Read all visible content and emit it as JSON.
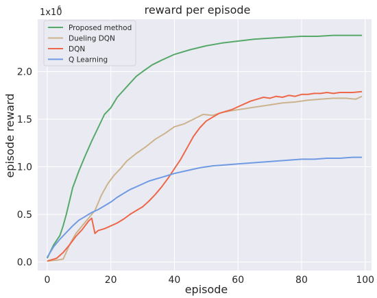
{
  "chart_data": {
    "type": "line",
    "title": "reward per episode",
    "xlabel": "episode",
    "ylabel": "episode reward",
    "y_scale_label": "1x10",
    "y_scale_exp": "6",
    "xlim": [
      -3,
      102
    ],
    "ylim": [
      -0.09,
      2.55
    ],
    "x_ticks": [
      "0",
      "20",
      "40",
      "60",
      "80",
      "100"
    ],
    "y_ticks": [
      "0.0",
      "0.5",
      "1.0",
      "1.5",
      "2.0"
    ],
    "grid": true,
    "background": "#eaeaf2",
    "legend_position": "top-left",
    "series": [
      {
        "name": "Proposed method",
        "color": "#55a868",
        "points": [
          [
            0,
            0.04
          ],
          [
            2,
            0.18
          ],
          [
            4,
            0.28
          ],
          [
            5,
            0.38
          ],
          [
            6,
            0.5
          ],
          [
            7,
            0.64
          ],
          [
            8,
            0.78
          ],
          [
            10,
            0.96
          ],
          [
            12,
            1.12
          ],
          [
            14,
            1.27
          ],
          [
            16,
            1.41
          ],
          [
            18,
            1.55
          ],
          [
            20,
            1.62
          ],
          [
            22,
            1.73
          ],
          [
            25,
            1.84
          ],
          [
            28,
            1.95
          ],
          [
            30,
            2.0
          ],
          [
            33,
            2.07
          ],
          [
            36,
            2.12
          ],
          [
            40,
            2.18
          ],
          [
            45,
            2.23
          ],
          [
            50,
            2.27
          ],
          [
            55,
            2.3
          ],
          [
            60,
            2.32
          ],
          [
            65,
            2.34
          ],
          [
            70,
            2.35
          ],
          [
            75,
            2.36
          ],
          [
            80,
            2.37
          ],
          [
            85,
            2.37
          ],
          [
            90,
            2.38
          ],
          [
            95,
            2.38
          ],
          [
            99,
            2.38
          ]
        ]
      },
      {
        "name": "Dueling DQN",
        "color": "#ccb38c",
        "points": [
          [
            0,
            0.01
          ],
          [
            3,
            0.02
          ],
          [
            5,
            0.03
          ],
          [
            7,
            0.18
          ],
          [
            9,
            0.3
          ],
          [
            11,
            0.38
          ],
          [
            13,
            0.46
          ],
          [
            15,
            0.54
          ],
          [
            17,
            0.7
          ],
          [
            19,
            0.82
          ],
          [
            21,
            0.91
          ],
          [
            23,
            0.98
          ],
          [
            25,
            1.06
          ],
          [
            28,
            1.14
          ],
          [
            31,
            1.21
          ],
          [
            34,
            1.29
          ],
          [
            37,
            1.35
          ],
          [
            40,
            1.42
          ],
          [
            43,
            1.45
          ],
          [
            46,
            1.5
          ],
          [
            49,
            1.55
          ],
          [
            52,
            1.54
          ],
          [
            55,
            1.57
          ],
          [
            58,
            1.59
          ],
          [
            62,
            1.61
          ],
          [
            66,
            1.63
          ],
          [
            70,
            1.65
          ],
          [
            74,
            1.67
          ],
          [
            78,
            1.68
          ],
          [
            82,
            1.7
          ],
          [
            86,
            1.71
          ],
          [
            90,
            1.72
          ],
          [
            94,
            1.72
          ],
          [
            97,
            1.71
          ],
          [
            99,
            1.74
          ]
        ]
      },
      {
        "name": "DQN",
        "color": "#ee6648",
        "points": [
          [
            0,
            0.01
          ],
          [
            3,
            0.04
          ],
          [
            5,
            0.1
          ],
          [
            7,
            0.18
          ],
          [
            9,
            0.27
          ],
          [
            11,
            0.34
          ],
          [
            13,
            0.43
          ],
          [
            14,
            0.46
          ],
          [
            15,
            0.3
          ],
          [
            16,
            0.33
          ],
          [
            18,
            0.35
          ],
          [
            20,
            0.38
          ],
          [
            22,
            0.41
          ],
          [
            24,
            0.45
          ],
          [
            26,
            0.5
          ],
          [
            28,
            0.54
          ],
          [
            30,
            0.58
          ],
          [
            32,
            0.64
          ],
          [
            34,
            0.71
          ],
          [
            36,
            0.79
          ],
          [
            38,
            0.88
          ],
          [
            40,
            0.98
          ],
          [
            42,
            1.08
          ],
          [
            44,
            1.2
          ],
          [
            46,
            1.32
          ],
          [
            48,
            1.41
          ],
          [
            50,
            1.48
          ],
          [
            52,
            1.52
          ],
          [
            54,
            1.56
          ],
          [
            56,
            1.58
          ],
          [
            58,
            1.6
          ],
          [
            60,
            1.63
          ],
          [
            62,
            1.66
          ],
          [
            64,
            1.69
          ],
          [
            66,
            1.71
          ],
          [
            68,
            1.73
          ],
          [
            70,
            1.72
          ],
          [
            72,
            1.74
          ],
          [
            74,
            1.73
          ],
          [
            76,
            1.75
          ],
          [
            78,
            1.74
          ],
          [
            80,
            1.76
          ],
          [
            82,
            1.76
          ],
          [
            84,
            1.77
          ],
          [
            86,
            1.77
          ],
          [
            88,
            1.78
          ],
          [
            90,
            1.77
          ],
          [
            92,
            1.78
          ],
          [
            94,
            1.78
          ],
          [
            96,
            1.78
          ],
          [
            99,
            1.79
          ]
        ]
      },
      {
        "name": "Q Learning",
        "color": "#6f9ae3",
        "points": [
          [
            0,
            0.05
          ],
          [
            2,
            0.16
          ],
          [
            4,
            0.24
          ],
          [
            6,
            0.31
          ],
          [
            8,
            0.38
          ],
          [
            10,
            0.44
          ],
          [
            12,
            0.48
          ],
          [
            14,
            0.52
          ],
          [
            16,
            0.55
          ],
          [
            18,
            0.59
          ],
          [
            20,
            0.63
          ],
          [
            22,
            0.68
          ],
          [
            24,
            0.72
          ],
          [
            26,
            0.76
          ],
          [
            28,
            0.79
          ],
          [
            30,
            0.82
          ],
          [
            32,
            0.85
          ],
          [
            34,
            0.87
          ],
          [
            36,
            0.89
          ],
          [
            38,
            0.91
          ],
          [
            40,
            0.93
          ],
          [
            44,
            0.96
          ],
          [
            48,
            0.99
          ],
          [
            52,
            1.01
          ],
          [
            56,
            1.02
          ],
          [
            60,
            1.03
          ],
          [
            64,
            1.04
          ],
          [
            68,
            1.05
          ],
          [
            72,
            1.06
          ],
          [
            76,
            1.07
          ],
          [
            80,
            1.08
          ],
          [
            84,
            1.08
          ],
          [
            88,
            1.09
          ],
          [
            92,
            1.09
          ],
          [
            96,
            1.1
          ],
          [
            99,
            1.1
          ]
        ]
      }
    ]
  }
}
